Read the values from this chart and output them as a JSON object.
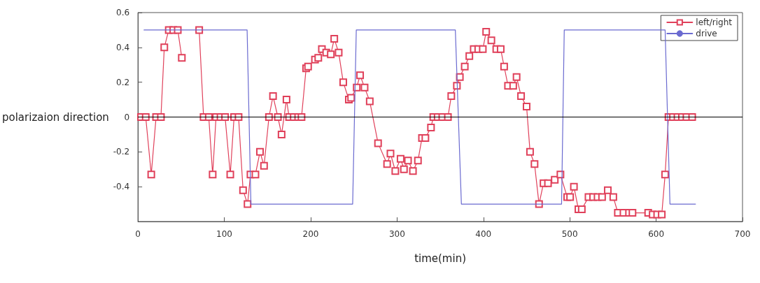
{
  "chart_data": {
    "type": "line",
    "xlabel": "time(min)",
    "ylabel": "polarizaion direction",
    "xlim": [
      0,
      700
    ],
    "xticks": [
      0,
      100,
      200,
      300,
      400,
      500,
      600,
      700
    ],
    "ylim": [
      -0.6,
      0.6
    ],
    "yticks": [
      {
        "value": -0.6,
        "label": null
      },
      -0.4,
      -0.2,
      0,
      0.2,
      0.4,
      0.6
    ],
    "grid": false,
    "legend": "top right",
    "marker": "square",
    "line_style": "solid",
    "ref_lines": [
      {
        "axis": "y",
        "value": 0,
        "color": "#000000"
      }
    ],
    "series": [
      {
        "name": "left/right",
        "color": "#e0405a",
        "x": [
          3.6,
          9,
          15.4,
          21,
          26.6,
          30.5,
          35.7,
          40.9,
          46.1,
          50.8,
          60,
          70.9,
          76,
          82,
          86.5,
          90.4,
          95.6,
          100.9,
          106.9,
          111.3,
          116.5,
          121.7,
          126.9,
          130.3,
          136,
          141.3,
          146,
          151.7,
          156.4,
          162,
          166.3,
          172,
          175,
          180.4,
          185.5,
          189.4,
          194.7,
          197,
          205,
          208.8,
          213,
          218,
          223.3,
          227.3,
          232.4,
          237.7,
          244.2,
          246.8,
          253.3,
          257.2,
          262.4,
          268.4,
          278,
          288.5,
          292.4,
          298,
          304.1,
          308,
          312.7,
          318.4,
          324.2,
          328.9,
          332.8,
          339.3,
          342,
          347,
          352.4,
          358.9,
          362.8,
          369.3,
          372.7,
          378.4,
          383.7,
          388.8,
          394,
          399.3,
          403.2,
          409.2,
          414.9,
          420,
          424,
          428.5,
          434.5,
          438.4,
          443.6,
          450,
          454,
          459.2,
          464.4,
          469.6,
          474.8,
          482.6,
          489.2,
          497,
          500.4,
          504.8,
          510,
          513.9,
          521.7,
          527,
          532.2,
          537.4,
          544,
          550.4,
          555.7,
          562.2,
          568.6,
          572.6,
          590.8,
          596,
          601.2,
          606.5,
          610.4,
          614.3,
          619.5,
          624.7,
          629.9,
          635.1,
          641.7
        ],
        "values": [
          0,
          0,
          -0.33,
          0,
          0,
          0.4,
          0.5,
          0.5,
          0.5,
          0.34,
          null,
          0.5,
          0,
          0,
          -0.33,
          0,
          0,
          0,
          -0.33,
          0,
          0,
          -0.42,
          -0.5,
          -0.33,
          -0.33,
          -0.2,
          -0.28,
          0,
          0.12,
          0,
          -0.1,
          0.1,
          0,
          0,
          0,
          0,
          0.28,
          0.29,
          0.33,
          0.34,
          0.39,
          0.37,
          0.36,
          0.45,
          0.37,
          0.2,
          0.1,
          0.11,
          0.17,
          0.24,
          0.17,
          0.09,
          -0.15,
          -0.27,
          -0.21,
          -0.31,
          -0.24,
          -0.3,
          -0.25,
          -0.31,
          -0.25,
          -0.12,
          -0.12,
          -0.06,
          0,
          0,
          0,
          0,
          0.12,
          0.18,
          0.23,
          0.29,
          0.35,
          0.39,
          0.39,
          0.39,
          0.49,
          0.44,
          0.39,
          0.39,
          0.29,
          0.18,
          0.18,
          0.23,
          0.12,
          0.06,
          -0.2,
          -0.27,
          -0.5,
          -0.38,
          -0.38,
          -0.36,
          -0.33,
          -0.46,
          -0.46,
          -0.4,
          -0.53,
          -0.53,
          -0.46,
          -0.46,
          -0.46,
          -0.46,
          -0.42,
          -0.46,
          -0.55,
          -0.55,
          -0.55,
          -0.55,
          -0.55,
          -0.56,
          -0.56,
          -0.56,
          -0.33,
          0,
          0,
          0,
          0,
          0,
          0
        ]
      },
      {
        "name": "drive",
        "color": "#6a6ad0",
        "marker": "none",
        "x": [
          7,
          126.4,
          130.8,
          248.6,
          252.8,
          367.5,
          374.5,
          490.5,
          493.6,
          610.4,
          616,
          645.6
        ],
        "values": [
          0.5,
          0.5,
          -0.5,
          -0.5,
          0.5,
          0.5,
          -0.5,
          -0.5,
          0.5,
          0.5,
          -0.5,
          -0.5
        ]
      }
    ]
  }
}
